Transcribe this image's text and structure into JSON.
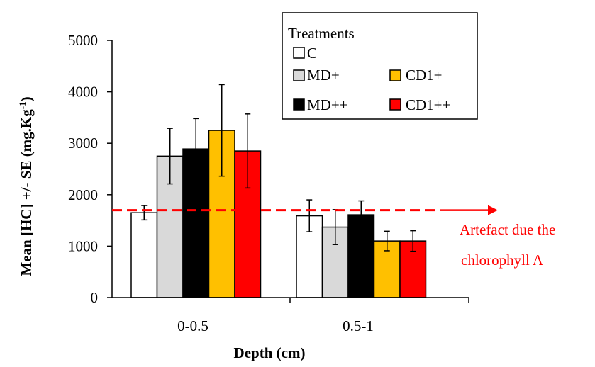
{
  "chart_data": {
    "type": "bar",
    "xlabel": "Depth (cm)",
    "ylabel_main": "Mean [HC] +/- SE (mg.Kg",
    "ylabel_sup": "-1",
    "ylabel_close": ")",
    "ylim": [
      0,
      5000
    ],
    "yticks": [
      0,
      1000,
      2000,
      3000,
      4000,
      5000
    ],
    "categories": [
      "0-0.5",
      "0.5-1"
    ],
    "legend": {
      "title": "Treatments",
      "placement": "top-right",
      "entries": [
        "C",
        "MD+",
        "MD++",
        "CD1+",
        "CD1++"
      ]
    },
    "series": [
      {
        "name": "C",
        "color": "#ffffff",
        "values": [
          1650,
          1590
        ],
        "errors": [
          140,
          310
        ]
      },
      {
        "name": "MD+",
        "color": "#d9d9d9",
        "values": [
          2750,
          1370
        ],
        "errors": [
          540,
          340
        ]
      },
      {
        "name": "MD++",
        "color": "#000000",
        "values": [
          2890,
          1610
        ],
        "errors": [
          590,
          270
        ]
      },
      {
        "name": "CD1+",
        "color": "#ffc000",
        "values": [
          3250,
          1100
        ],
        "errors": [
          890,
          190
        ]
      },
      {
        "name": "CD1++",
        "color": "#ff0000",
        "values": [
          2850,
          1100
        ],
        "errors": [
          720,
          200
        ]
      }
    ],
    "reference_line": {
      "value": 1700,
      "color": "#ff0000",
      "label_line1": "Artefact due the",
      "label_line2": "chlorophyll A"
    }
  }
}
